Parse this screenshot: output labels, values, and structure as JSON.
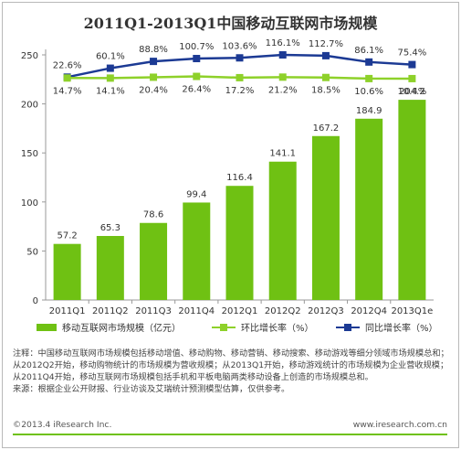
{
  "chart_data": {
    "type": "bar",
    "title": "2011Q1-2013Q1中国移动互联网市场规模",
    "categories": [
      "2011Q1",
      "2011Q2",
      "2011Q3",
      "2011Q4",
      "2012Q1",
      "2012Q2",
      "2012Q3",
      "2012Q4",
      "2013Q1e"
    ],
    "ylim": [
      0,
      250
    ],
    "yticks": [
      0,
      50,
      100,
      150,
      200,
      250
    ],
    "grid": false,
    "legend_position": "bottom",
    "series": [
      {
        "name": "移动互联网市场规模（亿元）",
        "kind": "bar",
        "color": "#6fc113",
        "values": [
          57.2,
          65.3,
          78.6,
          99.4,
          116.4,
          141.1,
          167.2,
          184.9,
          204.2
        ]
      },
      {
        "name": "环比增长率（%）",
        "kind": "line",
        "color": "#8ed12a",
        "labels": [
          "14.7%",
          "14.1%",
          "20.4%",
          "26.4%",
          "17.2%",
          "21.2%",
          "18.5%",
          "10.6%",
          "10.4%"
        ],
        "values": [
          14.7,
          14.1,
          20.4,
          26.4,
          17.2,
          21.2,
          18.5,
          10.6,
          10.4
        ]
      },
      {
        "name": "同比增长率（%）",
        "kind": "line",
        "color": "#1c3a94",
        "labels": [
          "22.6%",
          "60.1%",
          "88.8%",
          "100.7%",
          "103.6%",
          "116.1%",
          "112.7%",
          "86.1%",
          "75.4%"
        ],
        "values": [
          22.6,
          60.1,
          88.8,
          100.7,
          103.6,
          116.1,
          112.7,
          86.1,
          75.4
        ]
      }
    ]
  },
  "notes": [
    "注释：中国移动互联网市场规模包括移动增值、移动购物、移动营销、移动搜索、移动游戏等细分领域市场规模总和；从2012Q2开始，移动购物统计的市场规模为营收规模；从2013Q1开始，移动游戏统计的市场规模为企业营收规模；从2011Q4开始，移动互联网市场规模包括手机和平板电脑两类移动设备上创造的市场规模总和。",
    "来源：根据企业公开财报、行业访谈及艾瑞统计预测模型估算，仅供参考。"
  ],
  "footer": {
    "copyright": "©2013.4 iResearch Inc.",
    "site": "www.iresearch.com.cn"
  }
}
